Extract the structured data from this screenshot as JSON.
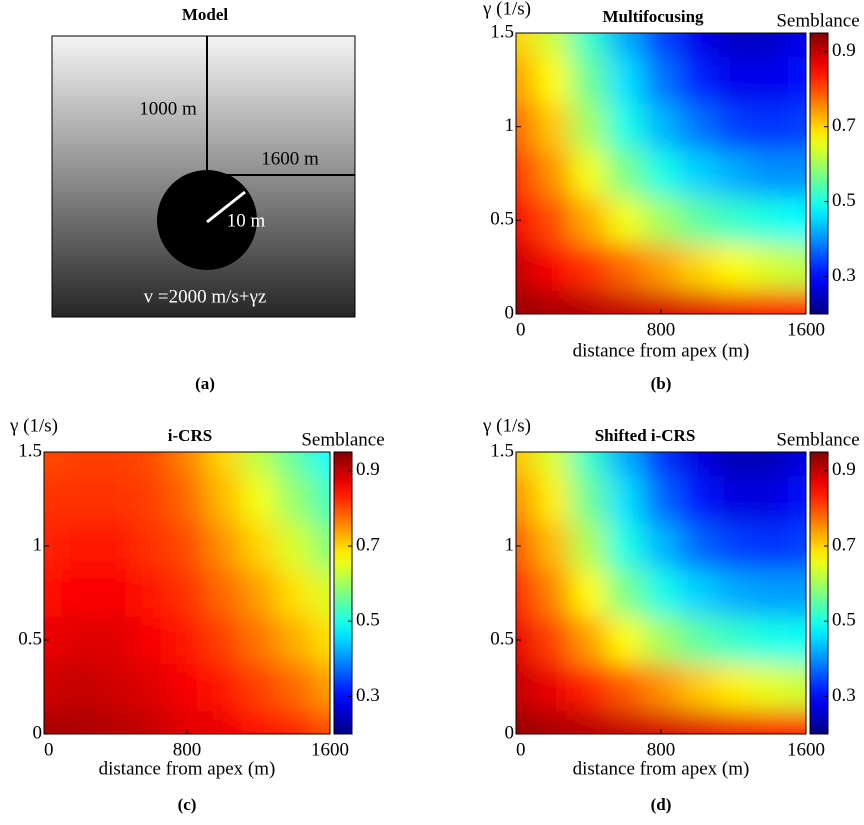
{
  "model": {
    "title": "Model",
    "depth_label": "1000 m",
    "offset_label": "1600 m",
    "radius_label": "10 m",
    "velocity_label": "v =2000 m/s+γz",
    "caption": "(a)"
  },
  "chart_data": [
    {
      "type": "heatmap",
      "title": "Multifocusing",
      "caption": "(b)",
      "x": [
        0,
        200,
        400,
        600,
        800,
        1000,
        1200,
        1400,
        1600
      ],
      "y": [
        0,
        0.25,
        0.5,
        0.75,
        1,
        1.25,
        1.5
      ],
      "values": [
        [
          0.93,
          0.92,
          0.91,
          0.9,
          0.89,
          0.88,
          0.87,
          0.86,
          0.85
        ],
        [
          0.9,
          0.86,
          0.82,
          0.78,
          0.74,
          0.7,
          0.67,
          0.64,
          0.62
        ],
        [
          0.86,
          0.8,
          0.73,
          0.66,
          0.6,
          0.55,
          0.52,
          0.5,
          0.48
        ],
        [
          0.82,
          0.75,
          0.66,
          0.57,
          0.5,
          0.45,
          0.42,
          0.4,
          0.4
        ],
        [
          0.78,
          0.71,
          0.6,
          0.5,
          0.43,
          0.38,
          0.34,
          0.33,
          0.34
        ],
        [
          0.74,
          0.67,
          0.56,
          0.46,
          0.38,
          0.32,
          0.28,
          0.28,
          0.3
        ],
        [
          0.7,
          0.63,
          0.52,
          0.42,
          0.34,
          0.28,
          0.25,
          0.25,
          0.28
        ]
      ],
      "xlim": [
        0,
        1600
      ],
      "ylim": [
        0,
        1.5
      ],
      "xticks": [
        0,
        800,
        1600
      ],
      "yticks": [
        0,
        0.5,
        1,
        1.5
      ],
      "xlabel": "distance from apex (m)",
      "ylabel": "γ (1/s)",
      "colorbar": {
        "label": "Semblance",
        "lim": [
          0.2,
          0.95
        ],
        "ticks": [
          0.3,
          0.5,
          0.7,
          0.9
        ],
        "colormap": "jet"
      }
    },
    {
      "type": "heatmap",
      "title": "i-CRS",
      "caption": "(c)",
      "x": [
        0,
        200,
        400,
        600,
        800,
        1000,
        1200,
        1400,
        1600
      ],
      "y": [
        0,
        0.25,
        0.5,
        0.75,
        1,
        1.25,
        1.5
      ],
      "values": [
        [
          0.92,
          0.92,
          0.91,
          0.9,
          0.88,
          0.87,
          0.85,
          0.83,
          0.8
        ],
        [
          0.89,
          0.9,
          0.89,
          0.88,
          0.86,
          0.84,
          0.81,
          0.78,
          0.74
        ],
        [
          0.87,
          0.88,
          0.88,
          0.86,
          0.84,
          0.81,
          0.77,
          0.73,
          0.69
        ],
        [
          0.85,
          0.86,
          0.86,
          0.84,
          0.82,
          0.78,
          0.74,
          0.69,
          0.64
        ],
        [
          0.83,
          0.84,
          0.84,
          0.82,
          0.8,
          0.75,
          0.7,
          0.64,
          0.58
        ],
        [
          0.82,
          0.82,
          0.82,
          0.81,
          0.78,
          0.72,
          0.66,
          0.59,
          0.53
        ],
        [
          0.8,
          0.81,
          0.81,
          0.8,
          0.76,
          0.7,
          0.62,
          0.55,
          0.48
        ]
      ],
      "xlim": [
        0,
        1600
      ],
      "ylim": [
        0,
        1.5
      ],
      "xticks": [
        0,
        800,
        1600
      ],
      "yticks": [
        0,
        0.5,
        1,
        1.5
      ],
      "xlabel": "distance from apex (m)",
      "ylabel": "γ (1/s)",
      "colorbar": {
        "label": "Semblance",
        "lim": [
          0.2,
          0.95
        ],
        "ticks": [
          0.3,
          0.5,
          0.7,
          0.9
        ],
        "colormap": "jet"
      }
    },
    {
      "type": "heatmap",
      "title": "Shifted i-CRS",
      "caption": "(d)",
      "x": [
        0,
        200,
        400,
        600,
        800,
        1000,
        1200,
        1400,
        1600
      ],
      "y": [
        0,
        0.25,
        0.5,
        0.75,
        1,
        1.25,
        1.5
      ],
      "values": [
        [
          0.93,
          0.92,
          0.91,
          0.9,
          0.89,
          0.88,
          0.87,
          0.86,
          0.85
        ],
        [
          0.9,
          0.87,
          0.83,
          0.79,
          0.75,
          0.71,
          0.68,
          0.65,
          0.63
        ],
        [
          0.87,
          0.81,
          0.74,
          0.67,
          0.6,
          0.55,
          0.52,
          0.5,
          0.49
        ],
        [
          0.83,
          0.76,
          0.67,
          0.57,
          0.5,
          0.45,
          0.42,
          0.41,
          0.41
        ],
        [
          0.79,
          0.72,
          0.61,
          0.5,
          0.43,
          0.37,
          0.34,
          0.33,
          0.34
        ],
        [
          0.75,
          0.68,
          0.56,
          0.46,
          0.37,
          0.31,
          0.27,
          0.27,
          0.3
        ],
        [
          0.71,
          0.64,
          0.52,
          0.42,
          0.33,
          0.27,
          0.24,
          0.24,
          0.27
        ]
      ],
      "xlim": [
        0,
        1600
      ],
      "ylim": [
        0,
        1.5
      ],
      "xticks": [
        0,
        800,
        1600
      ],
      "yticks": [
        0,
        0.5,
        1,
        1.5
      ],
      "xlabel": "distance from apex (m)",
      "ylabel": "γ (1/s)",
      "colorbar": {
        "label": "Semblance",
        "lim": [
          0.2,
          0.95
        ],
        "ticks": [
          0.3,
          0.5,
          0.7,
          0.9
        ],
        "colormap": "jet"
      }
    }
  ]
}
